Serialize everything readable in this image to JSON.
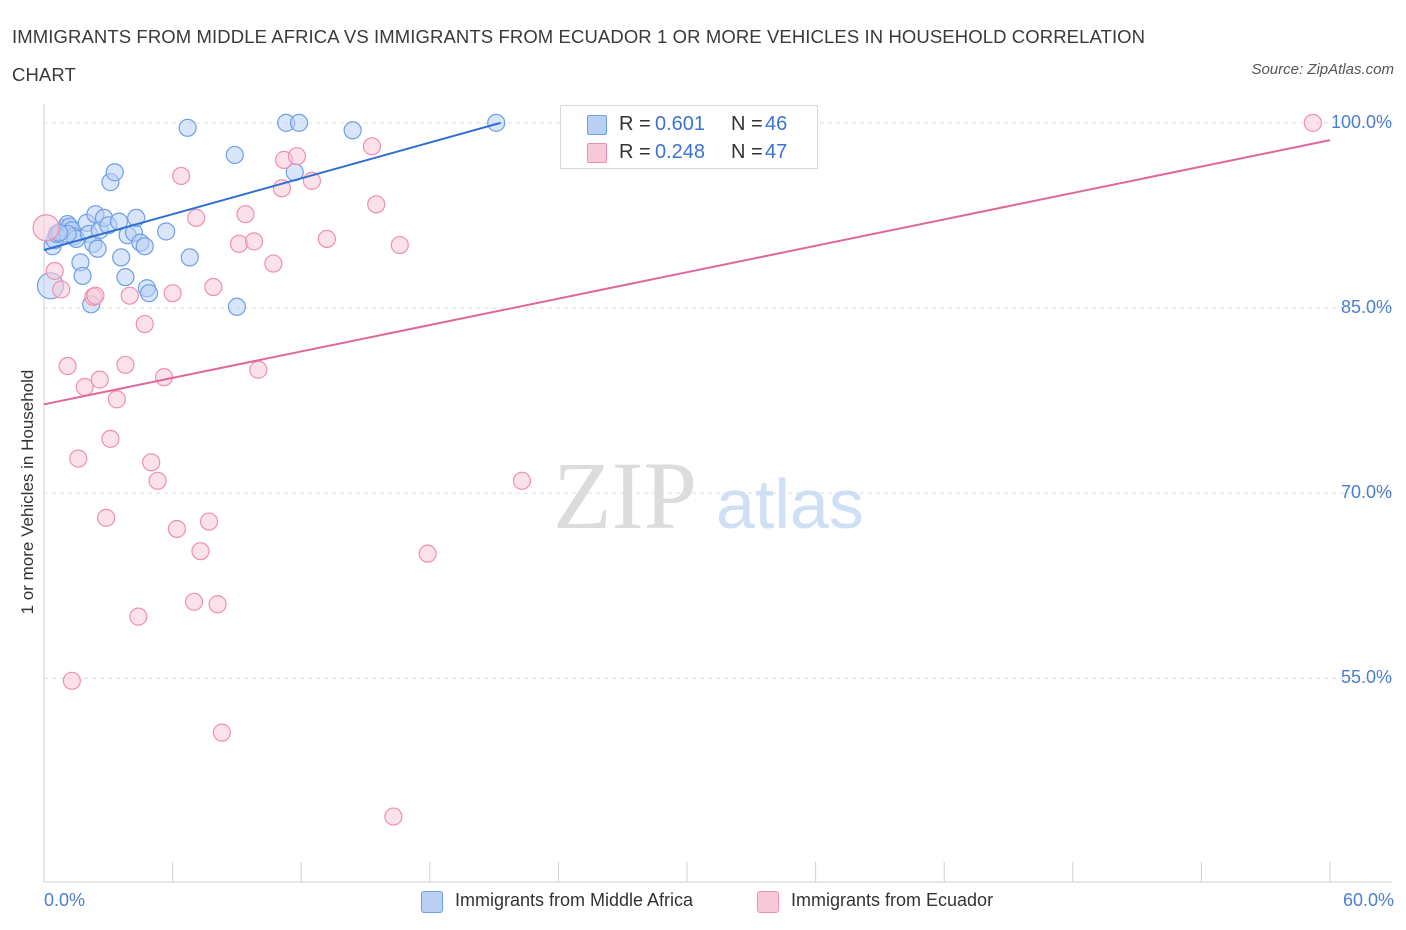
{
  "title": "IMMIGRANTS FROM MIDDLE AFRICA VS IMMIGRANTS FROM ECUADOR 1 OR MORE VEHICLES IN HOUSEHOLD CORRELATION CHART",
  "source": "Source: ZipAtlas.com",
  "watermark": {
    "zip": "ZIP",
    "atlas": "atlas"
  },
  "legend_top": {
    "r_label": "R =",
    "n_label": "N =",
    "rows": [
      {
        "r": "0.601",
        "n": "46"
      },
      {
        "r": "0.248",
        "n": "47"
      }
    ]
  },
  "chart_data": {
    "type": "scatter",
    "title": "IMMIGRANTS FROM MIDDLE AFRICA VS IMMIGRANTS FROM ECUADOR 1 OR MORE VEHICLES IN HOUSEHOLD CORRELATION CHART",
    "xlabel": "",
    "ylabel": "1 or more Vehicles in Household",
    "x_unit": "%",
    "y_unit": "%",
    "xlim": [
      0,
      60
    ],
    "ylim": [
      38.5,
      102.5
    ],
    "x_tick_labels": [
      {
        "value": 0,
        "label": "0.0%"
      },
      {
        "value": 60,
        "label": "60.0%"
      }
    ],
    "y_ticks": [
      {
        "value": 100,
        "label": "100.0%"
      },
      {
        "value": 85,
        "label": "85.0%"
      },
      {
        "value": 70,
        "label": "70.0%"
      },
      {
        "value": 55,
        "label": "55.0%"
      }
    ],
    "grid": true,
    "legend_position": "bottom",
    "series": [
      {
        "name": "Immigrants from Middle Africa",
        "color": "#6f9fe6",
        "fill": "#b9d0f4",
        "line_color": "#2f6fd0",
        "R": 0.601,
        "N": 46,
        "trend": {
          "x": [
            0,
            21.3
          ],
          "y": [
            89.7,
            100.0
          ]
        },
        "points": [
          [
            0.3,
            86.8
          ],
          [
            0.4,
            90.0
          ],
          [
            0.5,
            90.5
          ],
          [
            0.6,
            91.0
          ],
          [
            0.8,
            91.2
          ],
          [
            1.0,
            91.5
          ],
          [
            1.1,
            91.8
          ],
          [
            1.2,
            91.6
          ],
          [
            1.3,
            91.3
          ],
          [
            1.4,
            90.8
          ],
          [
            1.5,
            90.6
          ],
          [
            1.7,
            88.7
          ],
          [
            1.8,
            87.6
          ],
          [
            2.0,
            91.9
          ],
          [
            2.1,
            91.0
          ],
          [
            2.3,
            90.2
          ],
          [
            2.4,
            92.6
          ],
          [
            2.5,
            89.8
          ],
          [
            2.6,
            91.3
          ],
          [
            2.8,
            92.3
          ],
          [
            3.0,
            91.7
          ],
          [
            3.1,
            95.2
          ],
          [
            3.3,
            96.0
          ],
          [
            3.5,
            92.0
          ],
          [
            3.6,
            89.1
          ],
          [
            3.8,
            87.5
          ],
          [
            3.9,
            90.9
          ],
          [
            4.2,
            91.1
          ],
          [
            4.3,
            92.3
          ],
          [
            4.5,
            90.3
          ],
          [
            4.7,
            90.0
          ],
          [
            4.8,
            86.6
          ],
          [
            4.9,
            86.2
          ],
          [
            5.7,
            91.2
          ],
          [
            6.8,
            89.1
          ],
          [
            8.9,
            97.4
          ],
          [
            9.0,
            85.1
          ],
          [
            11.3,
            100.0
          ],
          [
            11.7,
            96.0
          ],
          [
            11.9,
            100.0
          ],
          [
            14.4,
            99.4
          ],
          [
            21.1,
            100.0
          ],
          [
            2.2,
            85.3
          ],
          [
            1.1,
            91.0
          ],
          [
            0.7,
            91.1
          ],
          [
            6.7,
            99.6
          ]
        ]
      },
      {
        "name": "Immigrants from Ecuador",
        "color": "#f08fb0",
        "fill": "#f8c9d9",
        "line_color": "#e0679a",
        "R": 0.248,
        "N": 47,
        "trend": {
          "x": [
            0,
            60
          ],
          "y": [
            77.2,
            98.6
          ]
        },
        "points": [
          [
            0.1,
            91.5
          ],
          [
            0.5,
            88.0
          ],
          [
            0.8,
            86.5
          ],
          [
            1.1,
            80.3
          ],
          [
            1.3,
            54.8
          ],
          [
            1.6,
            72.8
          ],
          [
            1.9,
            78.6
          ],
          [
            2.3,
            85.9
          ],
          [
            2.6,
            79.2
          ],
          [
            2.9,
            68.0
          ],
          [
            3.1,
            74.4
          ],
          [
            3.4,
            77.6
          ],
          [
            3.8,
            80.4
          ],
          [
            4.0,
            86.0
          ],
          [
            4.4,
            60.0
          ],
          [
            4.7,
            83.7
          ],
          [
            5.0,
            72.5
          ],
          [
            5.3,
            71.0
          ],
          [
            5.6,
            79.4
          ],
          [
            6.0,
            86.2
          ],
          [
            6.2,
            67.1
          ],
          [
            6.4,
            95.7
          ],
          [
            7.1,
            92.3
          ],
          [
            7.3,
            65.3
          ],
          [
            7.7,
            67.7
          ],
          [
            7.9,
            86.7
          ],
          [
            8.1,
            61.0
          ],
          [
            8.3,
            50.6
          ],
          [
            9.1,
            90.2
          ],
          [
            9.8,
            90.4
          ],
          [
            10.0,
            80.0
          ],
          [
            10.7,
            88.6
          ],
          [
            11.1,
            94.7
          ],
          [
            11.2,
            97.0
          ],
          [
            11.8,
            97.3
          ],
          [
            12.5,
            95.3
          ],
          [
            13.2,
            90.6
          ],
          [
            15.3,
            98.1
          ],
          [
            15.5,
            93.4
          ],
          [
            16.3,
            43.8
          ],
          [
            16.6,
            90.1
          ],
          [
            17.9,
            65.1
          ],
          [
            22.3,
            71.0
          ],
          [
            59.2,
            100.0
          ],
          [
            2.4,
            86.0
          ],
          [
            7.0,
            61.2
          ],
          [
            9.4,
            92.6
          ]
        ]
      }
    ]
  }
}
